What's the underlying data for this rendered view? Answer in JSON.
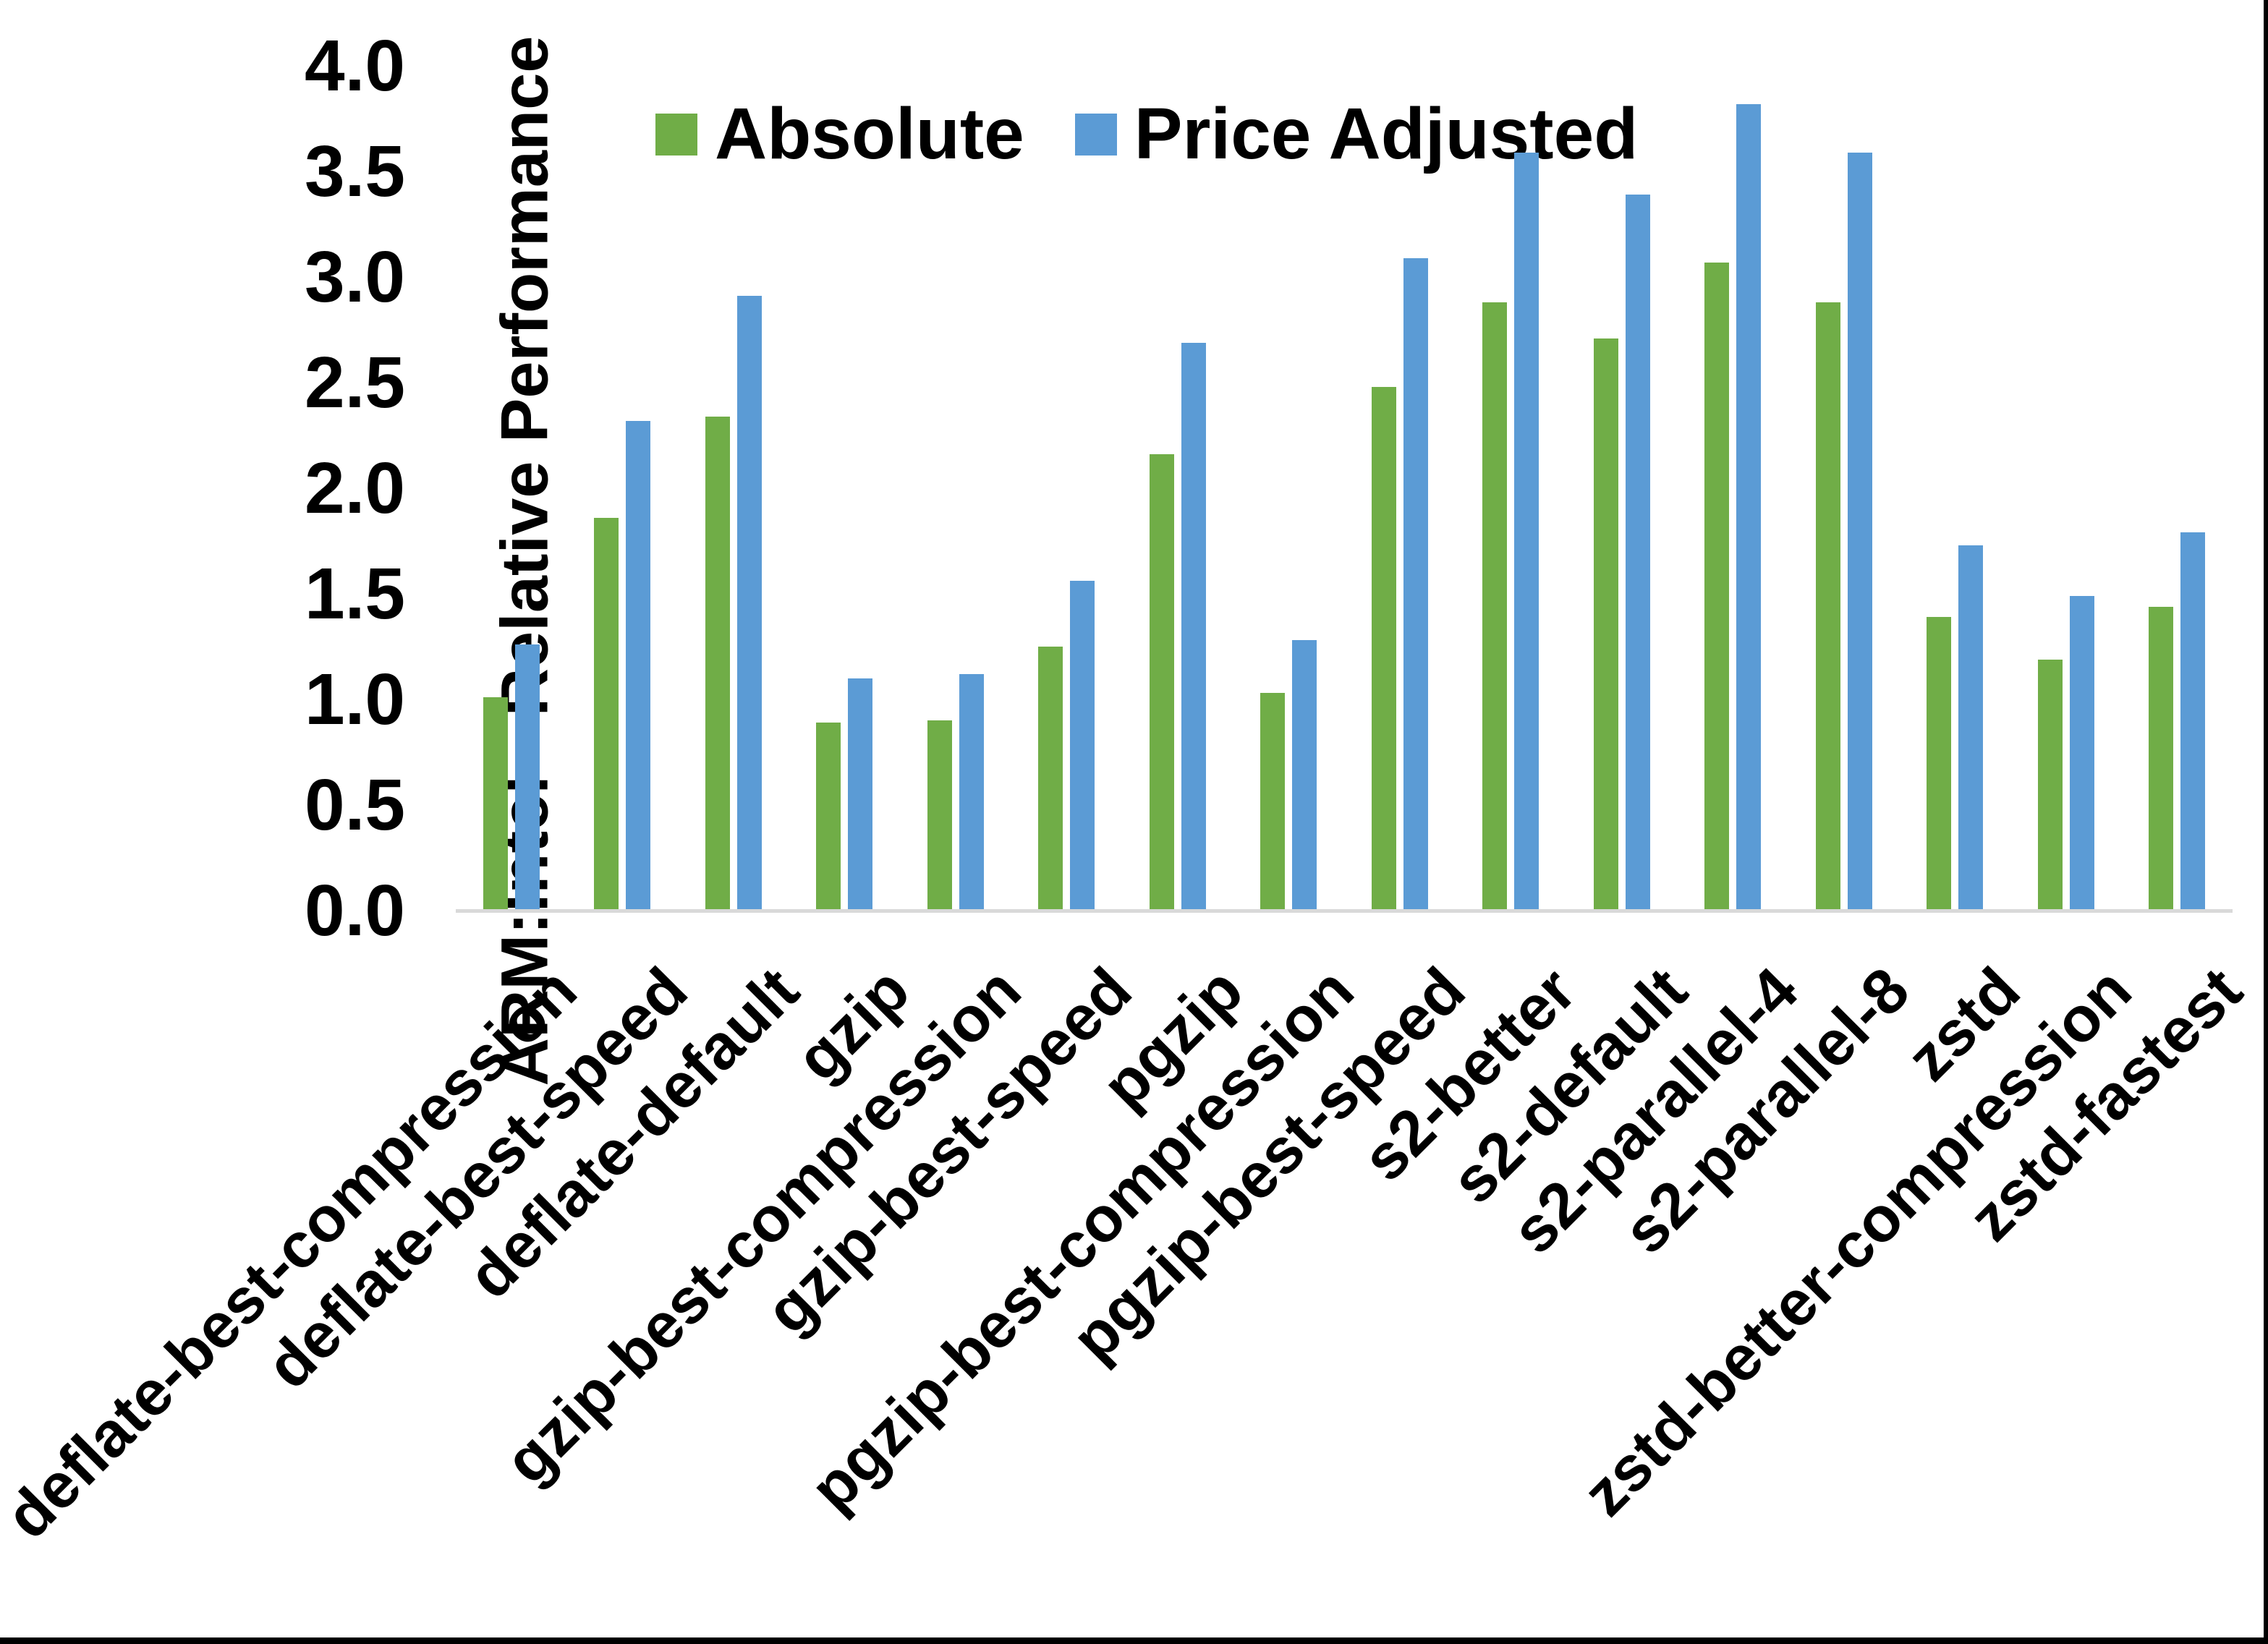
{
  "chart_data": {
    "type": "bar",
    "title": "",
    "xlabel": "",
    "ylabel": "ARM:Intel - Relative Performance",
    "ylim": [
      0.0,
      4.0
    ],
    "ytick_step": 0.5,
    "yticks": [
      "0.0",
      "0.5",
      "1.0",
      "1.5",
      "2.0",
      "2.5",
      "3.0",
      "3.5",
      "4.0"
    ],
    "grid": false,
    "legend_position": "top-center-inside",
    "categories": [
      "deflate-best-compression",
      "deflate-best-speed",
      "deflate-default",
      "gzip",
      "gzip-best-compression",
      "gzip-best-speed",
      "pgzip",
      "pgzip-best-compression",
      "pgzip-best-speed",
      "s2-better",
      "s2-default",
      "s2-parallel-4",
      "s2-parallel-8",
      "zstd",
      "zstd-better-compression",
      "zstd-fastest"
    ],
    "series": [
      {
        "name": "Absolute",
        "color": "#70AD47",
        "values": [
          1.01,
          1.86,
          2.34,
          0.89,
          0.9,
          1.25,
          2.16,
          1.03,
          2.48,
          2.88,
          2.71,
          3.07,
          2.88,
          1.39,
          1.19,
          1.44
        ]
      },
      {
        "name": "Price Adjusted",
        "color": "#5B9BD5",
        "values": [
          1.26,
          2.32,
          2.91,
          1.1,
          1.12,
          1.56,
          2.69,
          1.28,
          3.09,
          3.59,
          3.39,
          3.82,
          3.59,
          1.73,
          1.49,
          1.79
        ]
      }
    ],
    "colors": {
      "axis_line": "#D9D9D9",
      "text": "#000000",
      "background": "#FFFFFF",
      "frame_border": "#000000"
    }
  }
}
